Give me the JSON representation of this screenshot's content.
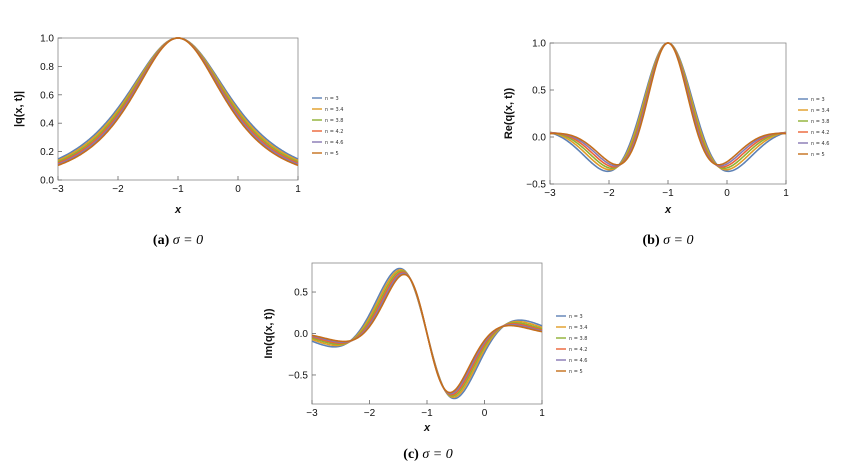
{
  "chart_data": [
    {
      "id": "a",
      "type": "line",
      "func": "abs",
      "ylabel": "|q(x, t)|",
      "xlabel": "x",
      "xlim": [
        -3,
        1
      ],
      "ylim": [
        0,
        1.0
      ],
      "xticks": [
        "−3",
        "−2",
        "−1",
        "0",
        "1"
      ],
      "yticks": [
        "0.0",
        "0.2",
        "0.4",
        "0.6",
        "0.8",
        "1.0"
      ],
      "caption_label": "(a)",
      "caption_math": "σ = 0",
      "series": [
        {
          "name": "n = 3",
          "n": 3,
          "color": "#5e81b5"
        },
        {
          "name": "n = 3.4",
          "n": 3.4,
          "color": "#e19c24"
        },
        {
          "name": "n = 3.8",
          "n": 3.8,
          "color": "#8fb032"
        },
        {
          "name": "n = 4.2",
          "n": 4.2,
          "color": "#eb6235"
        },
        {
          "name": "n = 4.6",
          "n": 4.6,
          "color": "#8778b3"
        },
        {
          "name": "n = 5",
          "n": 5,
          "color": "#c56e1a"
        }
      ]
    },
    {
      "id": "b",
      "type": "line",
      "func": "re",
      "ylabel": "Re(q(x, t))",
      "xlabel": "x",
      "xlim": [
        -3,
        1
      ],
      "ylim": [
        -0.5,
        1.0
      ],
      "xticks": [
        "−3",
        "−2",
        "−1",
        "0",
        "1"
      ],
      "yticks": [
        "−0.5",
        "0.0",
        "0.5",
        "1.0"
      ],
      "caption_label": "(b)",
      "caption_math": "σ = 0",
      "series": [
        {
          "name": "n = 3",
          "n": 3,
          "color": "#5e81b5"
        },
        {
          "name": "n = 3.4",
          "n": 3.4,
          "color": "#e19c24"
        },
        {
          "name": "n = 3.8",
          "n": 3.8,
          "color": "#8fb032"
        },
        {
          "name": "n = 4.2",
          "n": 4.2,
          "color": "#eb6235"
        },
        {
          "name": "n = 4.6",
          "n": 4.6,
          "color": "#8778b3"
        },
        {
          "name": "n = 5",
          "n": 5,
          "color": "#c56e1a"
        }
      ]
    },
    {
      "id": "c",
      "type": "line",
      "func": "im",
      "ylabel": "Im(q(x, t))",
      "xlabel": "x",
      "xlim": [
        -3,
        1
      ],
      "ylim": [
        -0.85,
        0.85
      ],
      "xticks": [
        "−3",
        "−2",
        "−1",
        "0",
        "1"
      ],
      "yticks": [
        "−0.5",
        "0.0",
        "0.5"
      ],
      "caption_label": "(c)",
      "caption_math": "σ = 0",
      "series": [
        {
          "name": "n = 3",
          "n": 3,
          "color": "#5e81b5"
        },
        {
          "name": "n = 3.4",
          "n": 3.4,
          "color": "#e19c24"
        },
        {
          "name": "n = 3.8",
          "n": 3.8,
          "color": "#8fb032"
        },
        {
          "name": "n = 4.2",
          "n": 4.2,
          "color": "#eb6235"
        },
        {
          "name": "n = 4.6",
          "n": 4.6,
          "color": "#8778b3"
        },
        {
          "name": "n = 5",
          "n": 5,
          "color": "#c56e1a"
        }
      ]
    }
  ]
}
